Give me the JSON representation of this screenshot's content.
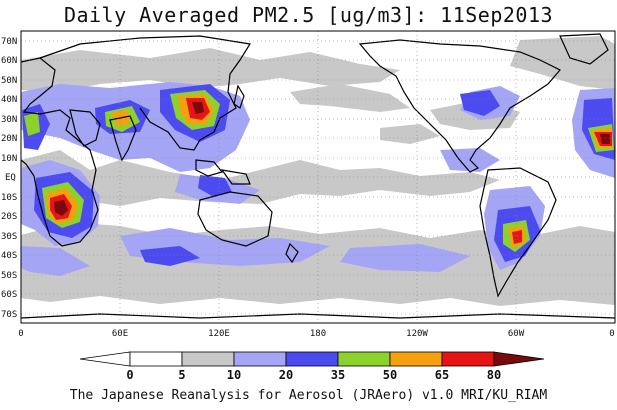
{
  "title": "Daily Averaged PM2.5 [ug/m3]: 11Sep2013",
  "footer": "The Japanese Reanalysis for Aerosol (JRAero) v1.0 MRI/KU_RIAM",
  "lat_labels": [
    "70N",
    "60N",
    "50N",
    "40N",
    "30N",
    "20N",
    "10N",
    "EQ",
    "10S",
    "20S",
    "30S",
    "40S",
    "50S",
    "60S",
    "70S"
  ],
  "lon_labels": [
    "0",
    "60E",
    "120E",
    "180",
    "120W",
    "60W",
    "0"
  ],
  "colorbar": {
    "levels": [
      "0",
      "5",
      "10",
      "20",
      "35",
      "50",
      "65",
      "80"
    ],
    "colors": [
      "#ffffff",
      "#c8c8c8",
      "#a5a5f5",
      "#4b4bf0",
      "#8cd22d",
      "#f5a00f",
      "#e61414",
      "#7a0a0a"
    ]
  }
}
